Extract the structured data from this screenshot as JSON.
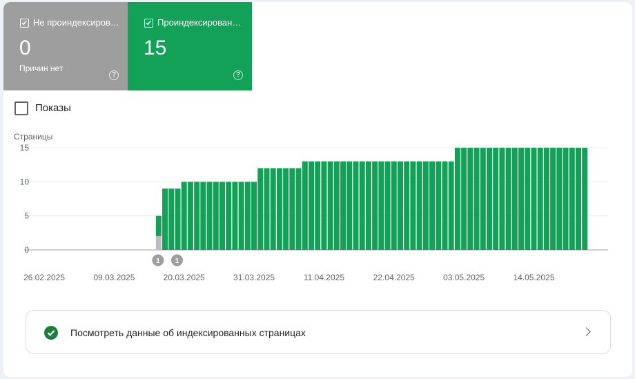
{
  "tiles": {
    "not_indexed": {
      "label": "Не проиндексированные",
      "value": "0",
      "sub": "Причин нет",
      "help": "?",
      "color": "#9e9e9e"
    },
    "indexed": {
      "label": "Проиндексированные",
      "value": "15",
      "help": "?",
      "color": "#12a157"
    }
  },
  "impressions_label": "Показы",
  "chart_data": {
    "type": "bar",
    "stacked": true,
    "ylabel": "Страницы",
    "ylim": [
      0,
      15
    ],
    "yticks": [
      0,
      5,
      10,
      15
    ],
    "x_start": "2025-02-26",
    "x_tick_labels": [
      "26.02.2025",
      "09.03.2025",
      "20.03.2025",
      "31.03.2025",
      "11.04.2025",
      "22.04.2025",
      "03.05.2025",
      "14.05.2025"
    ],
    "x_tick_dates": [
      "2025-02-26",
      "2025-03-09",
      "2025-03-20",
      "2025-03-31",
      "2025-04-11",
      "2025-04-22",
      "2025-05-03",
      "2025-05-14"
    ],
    "series": [
      {
        "name": "Не проиндексированные",
        "color": "#bdbdbd",
        "points": [
          {
            "date": "2025-03-16",
            "value": 2
          }
        ]
      },
      {
        "name": "Проиндексированные",
        "color": "#12a157",
        "runs": [
          {
            "from": "2025-03-16",
            "to": "2025-03-16",
            "value": 3
          },
          {
            "from": "2025-03-17",
            "to": "2025-03-19",
            "value": 9
          },
          {
            "from": "2025-03-20",
            "to": "2025-03-31",
            "value": 10
          },
          {
            "from": "2025-04-01",
            "to": "2025-04-07",
            "value": 12
          },
          {
            "from": "2025-04-08",
            "to": "2025-05-01",
            "value": 13
          },
          {
            "from": "2025-05-02",
            "to": "2025-05-22",
            "value": 15
          }
        ]
      }
    ],
    "annotations": [
      {
        "date": "2025-03-16",
        "label": "1"
      },
      {
        "date": "2025-03-19",
        "label": "1"
      }
    ],
    "colors": {
      "grid": "#e8eaed",
      "axis": "#9aa0a6",
      "tick_text": "#5f6368",
      "annotation": "#9e9e9e"
    }
  },
  "nav_link": {
    "label": "Посмотреть данные об индексированных страницах"
  }
}
